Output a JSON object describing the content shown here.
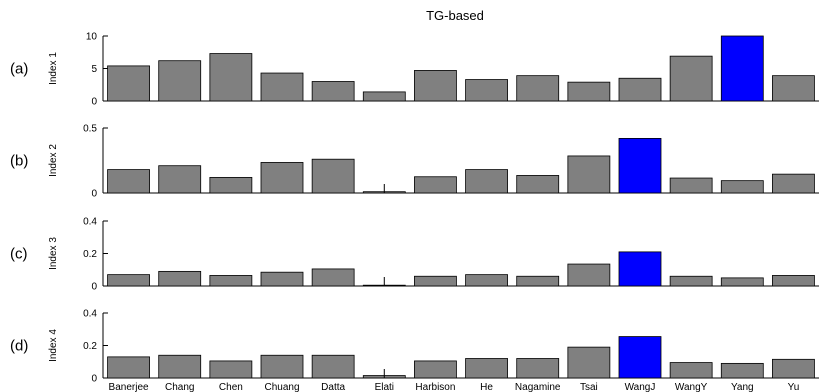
{
  "title": "TG-based",
  "chart_data": {
    "type": "bar",
    "title": "TG-based",
    "categories": [
      "Banerjee",
      "Chang",
      "Chen",
      "Chuang",
      "Datta",
      "Elati",
      "Harbison",
      "He",
      "Nagamine",
      "Tsai",
      "WangJ",
      "WangY",
      "Yang",
      "Yu"
    ],
    "colors": {
      "default": "#808080",
      "highlight": "#0000ff"
    },
    "panels": [
      {
        "label": "(a)",
        "ylabel": "Index 1",
        "ylim": [
          0,
          10
        ],
        "yticks": [
          0,
          5,
          10
        ],
        "ytick_labels": [
          "0",
          "5",
          "10"
        ],
        "values": [
          5.4,
          6.2,
          7.3,
          4.3,
          3.0,
          1.4,
          4.7,
          3.3,
          3.9,
          2.9,
          3.5,
          6.9,
          10.0,
          3.9
        ],
        "highlight": "Yang",
        "error_bar_index": null
      },
      {
        "label": "(b)",
        "ylabel": "Index 2",
        "ylim": [
          0,
          0.5
        ],
        "yticks": [
          0,
          0.5
        ],
        "ytick_labels": [
          "0",
          "0.5"
        ],
        "values": [
          0.18,
          0.21,
          0.12,
          0.235,
          0.26,
          0.01,
          0.125,
          0.18,
          0.135,
          0.285,
          0.42,
          0.115,
          0.095,
          0.145
        ],
        "highlight": "WangJ",
        "error_bar_index": 5
      },
      {
        "label": "(c)",
        "ylabel": "Index 3",
        "ylim": [
          0,
          0.4
        ],
        "yticks": [
          0,
          0.2,
          0.4
        ],
        "ytick_labels": [
          "0",
          "0.2",
          "0.4"
        ],
        "values": [
          0.07,
          0.09,
          0.065,
          0.085,
          0.105,
          0.005,
          0.06,
          0.07,
          0.06,
          0.135,
          0.21,
          0.06,
          0.05,
          0.065
        ],
        "highlight": "WangJ",
        "error_bar_index": 5
      },
      {
        "label": "(d)",
        "ylabel": "Index 4",
        "ylim": [
          0,
          0.4
        ],
        "yticks": [
          0,
          0.2,
          0.4
        ],
        "ytick_labels": [
          "0",
          "0.2",
          "0.4"
        ],
        "values": [
          0.13,
          0.14,
          0.105,
          0.14,
          0.14,
          0.015,
          0.105,
          0.12,
          0.12,
          0.19,
          0.255,
          0.095,
          0.09,
          0.115
        ],
        "highlight": "WangJ",
        "error_bar_index": 5
      }
    ]
  }
}
